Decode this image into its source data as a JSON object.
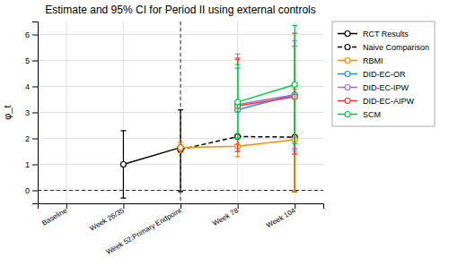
{
  "chart_data": {
    "type": "line",
    "title": "Estimate and 95% CI for Period II using external controls",
    "ylabel": "φ_t",
    "categories": [
      "Baseline",
      "Week 26/35",
      "Week 52:Primary Endpoint",
      "Week 78",
      "Week 104"
    ],
    "ylim": [
      -0.5,
      6.5
    ],
    "yticks": [
      0,
      1,
      2,
      3,
      4,
      5,
      6
    ],
    "grid": true,
    "legend": "right",
    "hlines": [
      0
    ],
    "vlines": [
      "Week 52:Primary Endpoint"
    ],
    "series": [
      {
        "name": "RCT Results",
        "color": "#000000",
        "line_style": "solid",
        "marker": "circle",
        "values": [
          null,
          1.0,
          1.65,
          null,
          null
        ],
        "error_low": [
          null,
          1.3,
          0.0,
          null,
          null
        ],
        "error_high": [
          null,
          1.3,
          1.45,
          null,
          null
        ]
      },
      {
        "name": "Naive Comparison",
        "color": "#000000",
        "line_style": "dashed",
        "marker": "circle",
        "values": [
          null,
          null,
          1.57,
          2.07,
          2.05
        ],
        "error_low": [
          null,
          null,
          1.62,
          0.0,
          2.1
        ],
        "error_high": [
          null,
          null,
          0.0,
          0.0,
          0.0
        ]
      },
      {
        "name": "RBMI",
        "color": "#FF8C00",
        "line_style": "solid",
        "marker": "circle",
        "values": [
          null,
          null,
          1.65,
          1.7,
          1.95
        ],
        "error_low": [
          null,
          null,
          0.2,
          0.4,
          2.0
        ],
        "error_high": [
          null,
          null,
          0.2,
          3.4,
          1.95
        ]
      },
      {
        "name": "DID-EC-OR",
        "color": "#1E90FF",
        "line_style": "solid",
        "marker": "circle",
        "values": [
          null,
          null,
          null,
          3.1,
          3.68
        ],
        "error_low": [
          null,
          null,
          null,
          1.6,
          2.08
        ],
        "error_high": [
          null,
          null,
          null,
          1.6,
          2.07
        ]
      },
      {
        "name": "DID-EC-IPW",
        "color": "#9370DB",
        "line_style": "solid",
        "marker": "circle",
        "values": [
          null,
          null,
          null,
          3.3,
          3.68
        ],
        "error_low": [
          null,
          null,
          null,
          1.55,
          2.18
        ],
        "error_high": [
          null,
          null,
          null,
          1.95,
          1.87
        ]
      },
      {
        "name": "DID-EC-AIPW",
        "color": "#FF3333",
        "line_style": "solid",
        "marker": "circle",
        "values": [
          null,
          null,
          null,
          3.25,
          3.6
        ],
        "error_low": [
          null,
          null,
          null,
          1.75,
          2.2
        ],
        "error_high": [
          null,
          null,
          null,
          1.8,
          2.45
        ]
      },
      {
        "name": "SCM",
        "color": "#00CC44",
        "line_style": "solid",
        "marker": "circle",
        "values": [
          null,
          null,
          null,
          3.4,
          4.07
        ],
        "error_low": [
          null,
          null,
          null,
          1.4,
          2.27
        ],
        "error_high": [
          null,
          null,
          null,
          1.45,
          2.28
        ]
      }
    ]
  }
}
